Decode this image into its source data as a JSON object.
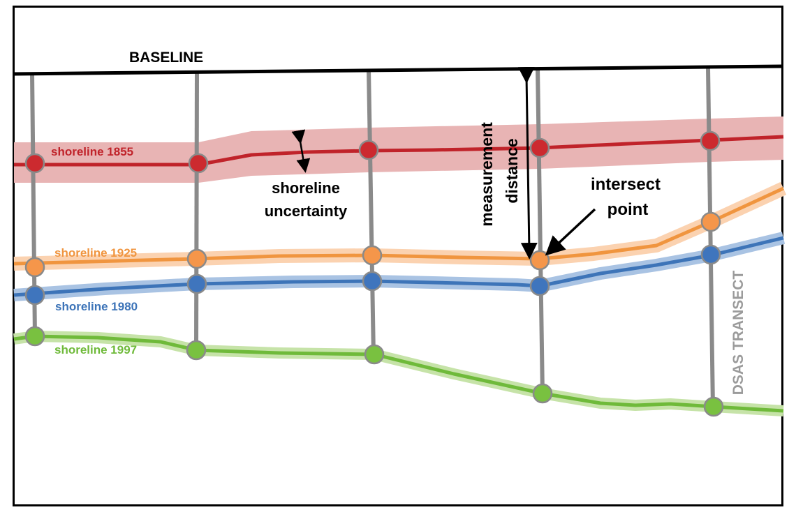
{
  "baseline": {
    "label": "BASELINE"
  },
  "transect": {
    "label": "DSAS TRANSECT"
  },
  "measurement": {
    "line1": "measurement",
    "line2": "distance"
  },
  "intersect": {
    "line1": "intersect",
    "line2": "point"
  },
  "uncertainty": {
    "line1": "shoreline",
    "line2": "uncertainty"
  },
  "shorelines": [
    {
      "label": "shoreline 1855",
      "color": "#c0232a",
      "band": "#e8b4b4",
      "dot": "#cc2a2f"
    },
    {
      "label": "shoreline 1925",
      "color": "#f0953f",
      "band": "#fbd2b0",
      "dot": "#f5964a"
    },
    {
      "label": "shoreline 1980",
      "color": "#3d74b8",
      "band": "#a9c3e3",
      "dot": "#3f75bd"
    },
    {
      "label": "shoreline 1997",
      "color": "#6fba3a",
      "band": "#c6e3a8",
      "dot": "#79c140"
    }
  ]
}
